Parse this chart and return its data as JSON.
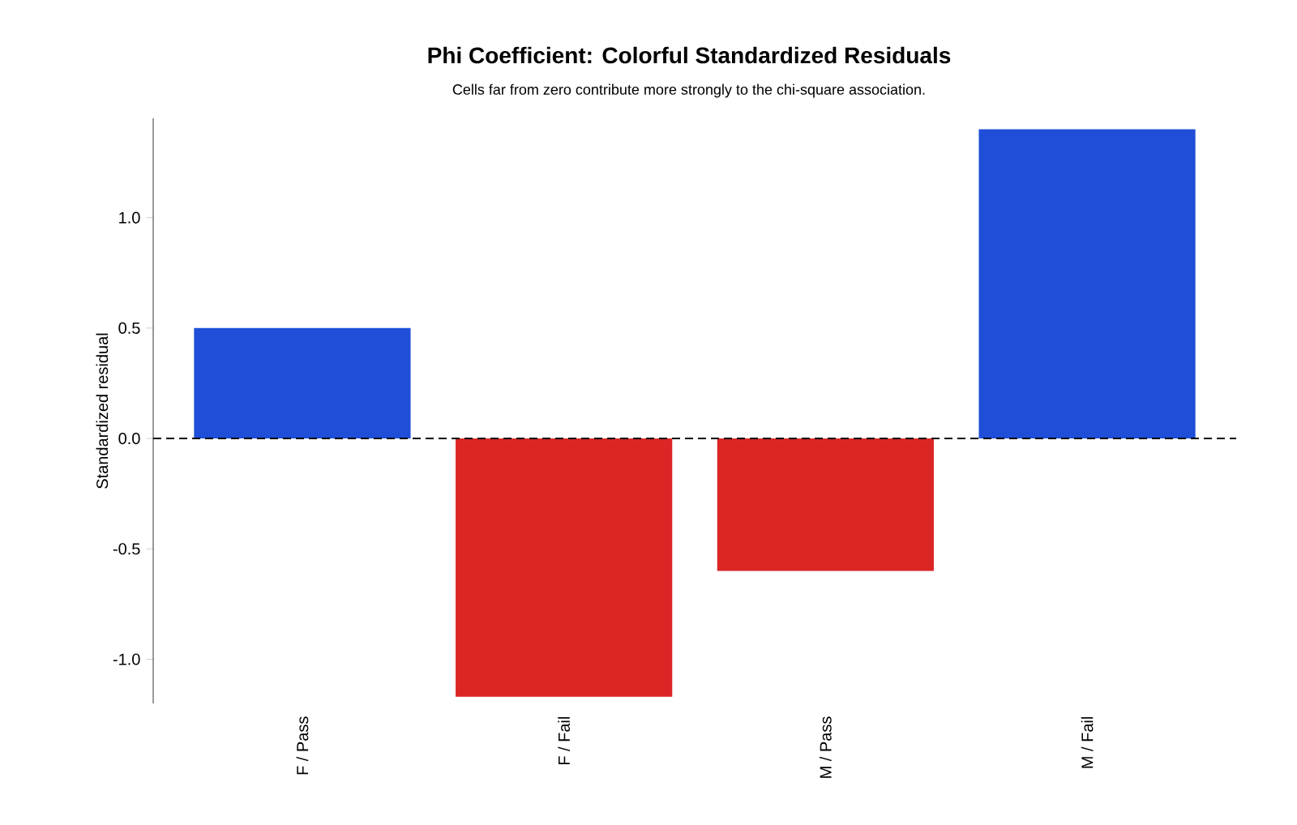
{
  "chart_data": {
    "type": "bar",
    "title": "Phi Coefficient: Colorful Standardized Residuals",
    "subtitle": "Cells far from zero contribute more strongly to the chi-square association.",
    "ylabel": "Standardized residual",
    "categories": [
      "F / Pass",
      "F / Fail",
      "M / Pass",
      "M / Fail"
    ],
    "values": [
      0.5,
      -1.17,
      -0.6,
      1.4
    ],
    "colors": [
      "#1f4fd8",
      "#dc2626",
      "#dc2626",
      "#1f4fd8"
    ],
    "ylim": [
      -1.2,
      1.45
    ],
    "yticks": [
      {
        "value": -1.0,
        "label": "-1.0"
      },
      {
        "value": -0.5,
        "label": "-0.5"
      },
      {
        "value": 0.0,
        "label": "0.0"
      },
      {
        "value": 0.5,
        "label": "0.5"
      },
      {
        "value": 1.0,
        "label": "1.0"
      }
    ],
    "ref_lines": [
      {
        "axis": "y",
        "value": 0,
        "color": "#000000",
        "line_style": "dashed"
      }
    ],
    "grid": false
  }
}
